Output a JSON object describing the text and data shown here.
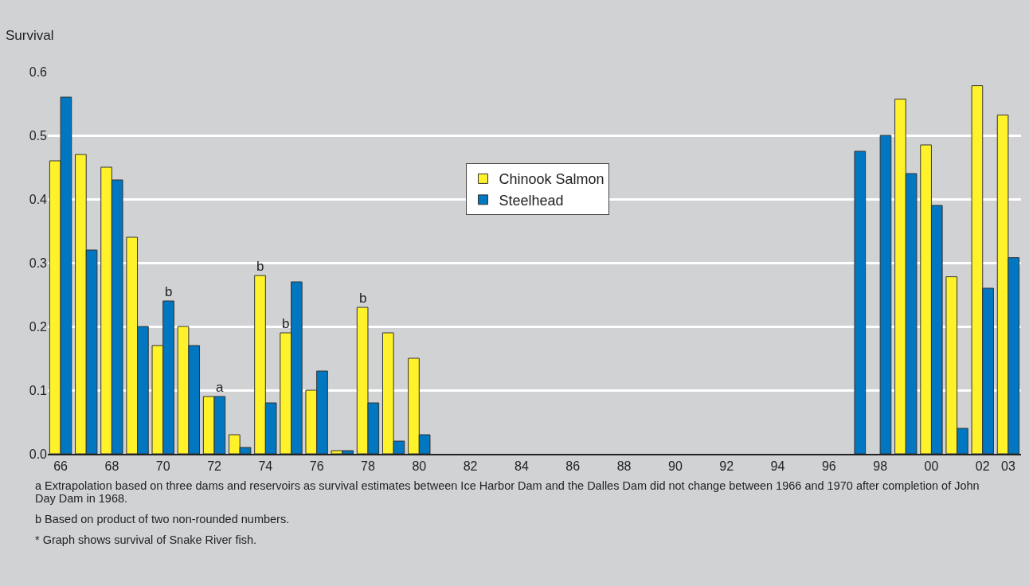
{
  "chart_data": {
    "type": "bar",
    "ylabel": "Survival",
    "x": [
      1966,
      1967,
      1968,
      1969,
      1970,
      1971,
      1972,
      1973,
      1974,
      1975,
      1976,
      1977,
      1978,
      1979,
      1980,
      1981,
      1982,
      1983,
      1984,
      1985,
      1986,
      1987,
      1988,
      1989,
      1990,
      1991,
      1992,
      1993,
      1994,
      1995,
      1996,
      1997,
      1998,
      1999,
      2000,
      2001,
      2002,
      2003
    ],
    "series": [
      {
        "name": "Chinook Salmon",
        "color": "#fff22a",
        "values": [
          0.46,
          0.47,
          0.45,
          0.34,
          0.17,
          0.2,
          0.09,
          0.03,
          0.28,
          0.19,
          0.1,
          0.005,
          0.23,
          0.19,
          0.15,
          null,
          null,
          null,
          null,
          null,
          null,
          null,
          null,
          null,
          null,
          null,
          null,
          null,
          null,
          null,
          null,
          null,
          null,
          0.557,
          0.485,
          0.278,
          0.578,
          0.532
        ]
      },
      {
        "name": "Steelhead",
        "color": "#0077c0",
        "values": [
          0.56,
          0.32,
          0.43,
          0.2,
          0.24,
          0.17,
          0.09,
          0.01,
          0.08,
          0.27,
          0.13,
          0.005,
          0.08,
          0.02,
          0.03,
          null,
          null,
          null,
          null,
          null,
          null,
          null,
          null,
          null,
          null,
          null,
          null,
          null,
          null,
          null,
          null,
          0.475,
          0.5,
          0.44,
          0.39,
          0.04,
          0.26,
          0.308
        ]
      }
    ],
    "xlim": [
      1965.5,
      2003.5
    ],
    "xticks": [
      {
        "value": 1966,
        "label": "66"
      },
      {
        "value": 1968,
        "label": "68"
      },
      {
        "value": 1970,
        "label": "70"
      },
      {
        "value": 1972,
        "label": "72"
      },
      {
        "value": 1974,
        "label": "74"
      },
      {
        "value": 1976,
        "label": "76"
      },
      {
        "value": 1978,
        "label": "78"
      },
      {
        "value": 1980,
        "label": "80"
      },
      {
        "value": 1982,
        "label": "82"
      },
      {
        "value": 1984,
        "label": "84"
      },
      {
        "value": 1986,
        "label": "86"
      },
      {
        "value": 1988,
        "label": "88"
      },
      {
        "value": 1990,
        "label": "90"
      },
      {
        "value": 1992,
        "label": "92"
      },
      {
        "value": 1994,
        "label": "94"
      },
      {
        "value": 1996,
        "label": "96"
      },
      {
        "value": 1998,
        "label": "98"
      },
      {
        "value": 2000,
        "label": "00"
      },
      {
        "value": 2002,
        "label": "02"
      },
      {
        "value": 2003,
        "label": "03"
      }
    ],
    "ylim": [
      0,
      0.6
    ],
    "yticks": [
      {
        "value": 0,
        "label": "0.0"
      },
      0.1,
      0.2,
      0.3,
      0.4,
      0.5,
      0.6
    ],
    "grid": "y",
    "legend": "top",
    "annotations": [
      {
        "text": "b",
        "x": 1970,
        "y": 0.24
      },
      {
        "text": "a",
        "x": 1972,
        "y": 0.09
      },
      {
        "text": "b",
        "x": 1974,
        "y": 0.28
      },
      {
        "text": "b",
        "x": 1975,
        "y": 0.19
      },
      {
        "text": "b",
        "x": 1978,
        "y": 0.23
      },
      "a  Extrapolation based on three dams and reservoirs as survival estimates between Ice Harbor Dam and the Dalles Dam did not change between 1966 and 1970 after completion of John Day Dam in 1968.",
      "b  Based on product of two non-rounded numbers.",
      "*  Graph shows survival of Snake River fish."
    ]
  }
}
